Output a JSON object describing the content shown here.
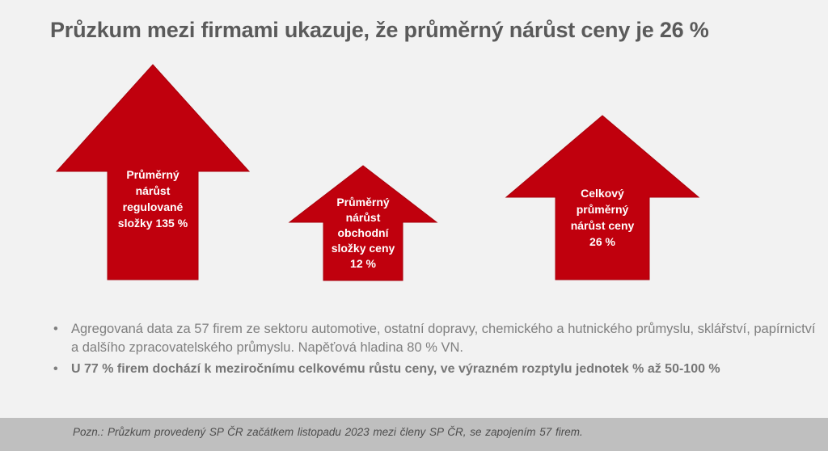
{
  "title": "Průzkum mezi firmami ukazuje, že průměrný nárůst ceny je 26 %",
  "arrows": [
    {
      "lines": [
        "Průměrný",
        "nárůst",
        "regulované",
        "složky 135 %"
      ]
    },
    {
      "lines": [
        "Průměrný",
        "nárůst",
        "obchodní",
        "složky ceny",
        "12 %"
      ]
    },
    {
      "lines": [
        "Celkový",
        "průměrný",
        "nárůst ceny",
        "26 %"
      ]
    }
  ],
  "arrow_color": "#c0000d",
  "bullets": [
    {
      "text": "Agregovaná data za 57 firem ze sektoru automotive, ostatní dopravy, chemického a hutnického průmyslu, sklářství, papírnictví a dalšího zpracovatelského průmyslu. Napěťová hladina 80 % VN.",
      "bold": false
    },
    {
      "text": "U 77 % firem dochází k meziročnímu celkovému růstu ceny, ve výrazném rozptylu jednotek % až 50-100 %",
      "bold": true
    }
  ],
  "bullet_marker": "•",
  "footer": "Pozn.: Průzkum provedený SP ČR začátkem listopadu 2023 mezi členy SP ČR, se zapojením 57 firem."
}
